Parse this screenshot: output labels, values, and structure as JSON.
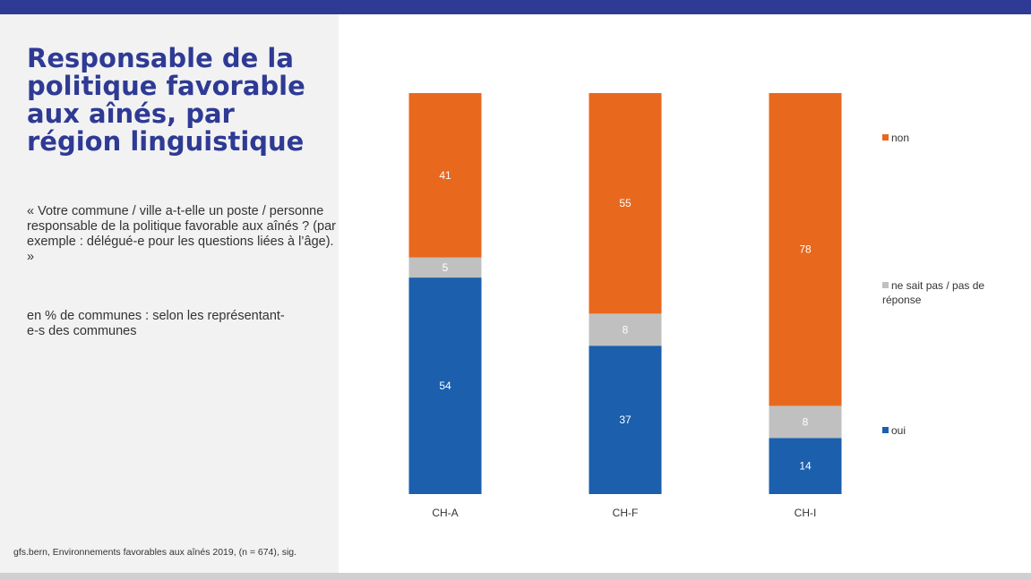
{
  "slide": {
    "title": "Responsable de la politique favorable aux aînés, par région linguistique",
    "question": "« Votre commune / ville a-t-elle un poste / personne responsable de la politique favorable aux aînés ? (par exemple : délégué-e pour les questions liées à l’âge). »",
    "unit_note": "en % de communes : selon les représentant-e-s des communes",
    "source": "gfs.bern, Environnements favorables aux aînés 2019, (n = 674), sig."
  },
  "colors": {
    "accent": "#2e3a94",
    "oui": "#1b5fad",
    "ne_sait_pas": "#c0c0c0",
    "non": "#e8681e",
    "panel_bg": "#f2f2f3"
  },
  "chart_data": {
    "type": "bar",
    "stacked": true,
    "categories": [
      "CH-A",
      "CH-F",
      "CH-I"
    ],
    "series": [
      {
        "name": "oui",
        "values": [
          54,
          37,
          14
        ]
      },
      {
        "name": "ne sait pas / pas de réponse",
        "values": [
          5,
          8,
          8
        ]
      },
      {
        "name": "non",
        "values": [
          41,
          55,
          78
        ]
      }
    ],
    "ylim": [
      0,
      100
    ],
    "grid": false,
    "legend_position": "right"
  }
}
